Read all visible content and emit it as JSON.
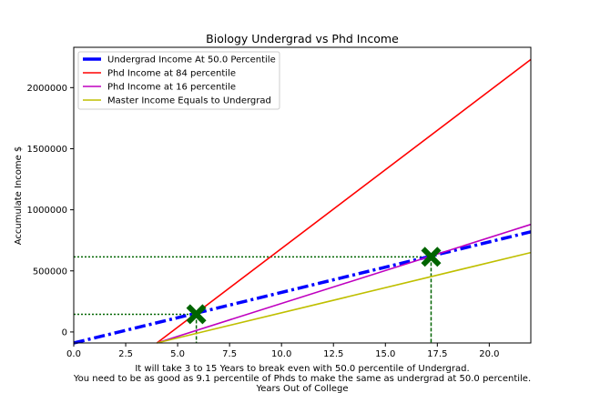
{
  "chart_data": {
    "type": "line",
    "title": "Biology Undergrad vs Phd Income",
    "xlabel": "Years Out of College",
    "ylabel": "Accumulate Income $",
    "caption_lines": [
      "It will take 3 to 15 Years to break even with 50.0 percentile of Undergrad.",
      "You need to be as good as 9.1 percentile of Phds to make the same as undergrad at 50.0 percentile."
    ],
    "xlim": [
      0,
      22
    ],
    "ylim": [
      -90000,
      2330000
    ],
    "xticks": [
      0.0,
      2.5,
      5.0,
      7.5,
      10.0,
      12.5,
      15.0,
      17.5,
      20.0
    ],
    "yticks": [
      0,
      500000,
      1000000,
      1500000,
      2000000
    ],
    "legend_position": "upper-left",
    "series": [
      {
        "name": "Undergrad Income At 50.0 Percentile",
        "color": "#0000ff",
        "style": "dashdot",
        "points": [
          [
            0,
            -90000
          ],
          [
            22,
            820000
          ]
        ]
      },
      {
        "name": "Phd Income at 84 percentile",
        "color": "#ff0000",
        "style": "solid",
        "points": [
          [
            4,
            -90000
          ],
          [
            22,
            2230000
          ]
        ]
      },
      {
        "name": "Phd Income at 16 percentile",
        "color": "#bf00bf",
        "style": "solid",
        "points": [
          [
            4,
            -90000
          ],
          [
            22,
            880000
          ]
        ]
      },
      {
        "name": "Master Income Equals to Undergrad",
        "color": "#bfbf00",
        "style": "solid",
        "points": [
          [
            4,
            -90000
          ],
          [
            22,
            650000
          ]
        ]
      }
    ],
    "markers": [
      {
        "x": 5.9,
        "y": 145000,
        "color": "#006400"
      },
      {
        "x": 17.2,
        "y": 615000,
        "color": "#006400"
      }
    ]
  }
}
